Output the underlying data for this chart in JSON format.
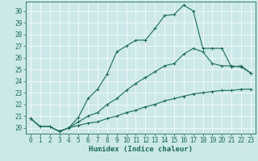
{
  "xlabel": "Humidex (Indice chaleur)",
  "background_color": "#cce8e8",
  "grid_color": "#ffffff",
  "line_color": "#1a6b5a",
  "xlim": [
    -0.5,
    23.5
  ],
  "ylim": [
    19.5,
    30.8
  ],
  "xticks": [
    0,
    1,
    2,
    3,
    4,
    5,
    6,
    7,
    8,
    9,
    10,
    11,
    12,
    13,
    14,
    15,
    16,
    17,
    18,
    19,
    20,
    21,
    22,
    23
  ],
  "yticks": [
    20,
    21,
    22,
    23,
    24,
    25,
    26,
    27,
    28,
    29,
    30
  ],
  "line1_x": [
    0,
    1,
    2,
    3,
    4,
    5,
    6,
    7,
    8,
    9,
    10,
    11,
    12,
    13,
    14,
    15,
    16,
    17,
    18,
    19,
    20,
    21,
    22,
    23
  ],
  "line1_y": [
    20.8,
    20.1,
    20.1,
    19.7,
    20.0,
    20.9,
    22.5,
    23.3,
    24.6,
    26.5,
    27.0,
    27.5,
    27.5,
    28.5,
    29.6,
    29.7,
    30.5,
    30.0,
    26.8,
    26.8,
    26.8,
    25.2,
    25.3,
    24.7
  ],
  "line2_x": [
    0,
    1,
    2,
    3,
    4,
    5,
    6,
    7,
    8,
    9,
    10,
    11,
    12,
    13,
    14,
    15,
    16,
    17,
    18,
    19,
    20,
    21,
    22,
    23
  ],
  "line2_y": [
    20.8,
    20.1,
    20.1,
    19.7,
    20.0,
    20.5,
    21.0,
    21.3,
    22.0,
    22.5,
    23.2,
    23.8,
    24.3,
    24.8,
    25.3,
    25.5,
    26.3,
    26.8,
    26.5,
    25.5,
    25.3,
    25.3,
    25.2,
    24.7
  ],
  "line3_x": [
    0,
    1,
    2,
    3,
    4,
    5,
    6,
    7,
    8,
    9,
    10,
    11,
    12,
    13,
    14,
    15,
    16,
    17,
    18,
    19,
    20,
    21,
    22,
    23
  ],
  "line3_y": [
    20.8,
    20.1,
    20.1,
    19.7,
    20.0,
    20.2,
    20.4,
    20.5,
    20.8,
    21.0,
    21.3,
    21.5,
    21.8,
    22.0,
    22.3,
    22.5,
    22.7,
    22.9,
    23.0,
    23.1,
    23.2,
    23.2,
    23.3,
    23.3
  ],
  "marker": "+",
  "marker_size": 3,
  "linewidth": 0.8,
  "tick_fontsize": 5.5,
  "xlabel_fontsize": 6.5
}
